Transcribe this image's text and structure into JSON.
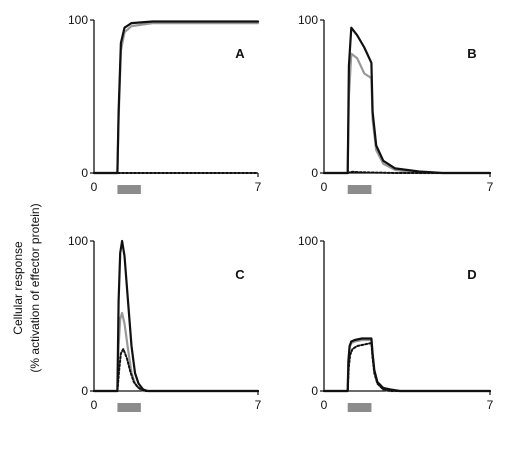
{
  "figure": {
    "ylabel_line1": "Cellular response",
    "ylabel_line2": "(% activation of effector protein)"
  },
  "chart_data": [
    {
      "type": "line",
      "panel": "A",
      "xlim": [
        0,
        7
      ],
      "ylim": [
        0,
        100
      ],
      "xticks": [
        "0",
        "7"
      ],
      "yticks": [
        "0",
        "100"
      ],
      "stimulus": {
        "start": 1,
        "end": 2
      },
      "series": [
        {
          "style": "black-solid",
          "color": "#111111",
          "x": [
            0,
            1.0,
            1.05,
            1.15,
            1.3,
            1.6,
            2.5,
            7
          ],
          "y": [
            0,
            0,
            40,
            85,
            95,
            98,
            99,
            99
          ]
        },
        {
          "style": "gray-solid",
          "color": "#999999",
          "x": [
            0,
            1.0,
            1.05,
            1.15,
            1.3,
            1.6,
            2.5,
            7
          ],
          "y": [
            0,
            0,
            35,
            80,
            92,
            96,
            98,
            98
          ]
        },
        {
          "style": "black-dotted",
          "color": "#111111",
          "x": [
            0,
            7
          ],
          "y": [
            0,
            0
          ]
        }
      ]
    },
    {
      "type": "line",
      "panel": "B",
      "xlim": [
        0,
        7
      ],
      "ylim": [
        0,
        100
      ],
      "xticks": [
        "0",
        "7"
      ],
      "yticks": [
        "0",
        "100"
      ],
      "stimulus": {
        "start": 1,
        "end": 2
      },
      "series": [
        {
          "style": "black-solid",
          "color": "#111111",
          "x": [
            0,
            1.0,
            1.05,
            1.15,
            1.4,
            1.7,
            2.0,
            2.05,
            2.2,
            2.5,
            3.0,
            4.0,
            5.0,
            7
          ],
          "y": [
            0,
            0,
            70,
            95,
            90,
            82,
            72,
            40,
            18,
            8,
            3,
            1,
            0,
            0
          ]
        },
        {
          "style": "gray-solid",
          "color": "#999999",
          "x": [
            0,
            1.0,
            1.05,
            1.15,
            1.4,
            1.7,
            2.0,
            2.05,
            2.2,
            2.5,
            3.0,
            4.0,
            7
          ],
          "y": [
            0,
            0,
            50,
            78,
            75,
            65,
            62,
            35,
            15,
            6,
            2,
            0,
            0
          ]
        },
        {
          "style": "black-dotted",
          "color": "#111111",
          "x": [
            0,
            1.0,
            1.1,
            1.2,
            1.5,
            2.0,
            2.5,
            3.0,
            7
          ],
          "y": [
            0,
            0,
            0.5,
            0.8,
            0.5,
            0.3,
            0.2,
            0,
            0
          ]
        }
      ]
    },
    {
      "type": "line",
      "panel": "C",
      "xlim": [
        0,
        7
      ],
      "ylim": [
        0,
        100
      ],
      "xticks": [
        "0",
        "7"
      ],
      "yticks": [
        "0",
        "100"
      ],
      "stimulus": {
        "start": 1,
        "end": 2
      },
      "series": [
        {
          "style": "black-solid",
          "color": "#111111",
          "x": [
            0,
            1.0,
            1.05,
            1.12,
            1.2,
            1.3,
            1.45,
            1.6,
            1.75,
            1.9,
            2.1,
            2.3,
            7
          ],
          "y": [
            0,
            0,
            60,
            92,
            100,
            90,
            60,
            30,
            12,
            5,
            1,
            0,
            0
          ]
        },
        {
          "style": "gray-solid",
          "color": "#999999",
          "x": [
            0,
            1.0,
            1.05,
            1.12,
            1.2,
            1.3,
            1.45,
            1.6,
            1.75,
            1.9,
            2.1,
            7
          ],
          "y": [
            0,
            0,
            30,
            48,
            52,
            45,
            28,
            12,
            5,
            2,
            0,
            0
          ]
        },
        {
          "style": "black-dotted",
          "color": "#111111",
          "x": [
            0,
            1.0,
            1.08,
            1.15,
            1.25,
            1.4,
            1.55,
            1.7,
            1.85,
            2.0,
            2.2,
            7
          ],
          "y": [
            0,
            0,
            15,
            25,
            28,
            22,
            13,
            6,
            3,
            1,
            0,
            0
          ]
        }
      ]
    },
    {
      "type": "line",
      "panel": "D",
      "xlim": [
        0,
        7
      ],
      "ylim": [
        0,
        100
      ],
      "xticks": [
        "0",
        "7"
      ],
      "yticks": [
        "0",
        "100"
      ],
      "stimulus": {
        "start": 1,
        "end": 2
      },
      "series": [
        {
          "style": "black-solid",
          "color": "#111111",
          "x": [
            0,
            1.0,
            1.03,
            1.08,
            1.15,
            1.3,
            1.6,
            2.0,
            2.05,
            2.12,
            2.25,
            2.5,
            2.8,
            3.2,
            7
          ],
          "y": [
            0,
            0,
            20,
            30,
            33,
            34,
            35,
            35,
            25,
            14,
            6,
            2,
            1,
            0,
            0
          ]
        },
        {
          "style": "gray-solid",
          "color": "#999999",
          "x": [
            0,
            1.0,
            1.03,
            1.08,
            1.15,
            1.3,
            1.6,
            2.0,
            2.05,
            2.12,
            2.25,
            2.5,
            2.8,
            7
          ],
          "y": [
            0,
            0,
            19,
            29,
            32,
            33,
            34,
            34,
            24,
            13,
            5,
            1,
            0,
            0
          ]
        },
        {
          "style": "black-dotted",
          "color": "#111111",
          "x": [
            0,
            1.0,
            1.04,
            1.1,
            1.2,
            1.4,
            1.7,
            2.0,
            2.05,
            2.12,
            2.25,
            2.5,
            2.8,
            7
          ],
          "y": [
            0,
            0,
            15,
            24,
            28,
            30,
            31,
            32,
            22,
            12,
            5,
            1,
            0,
            0
          ]
        }
      ]
    }
  ]
}
